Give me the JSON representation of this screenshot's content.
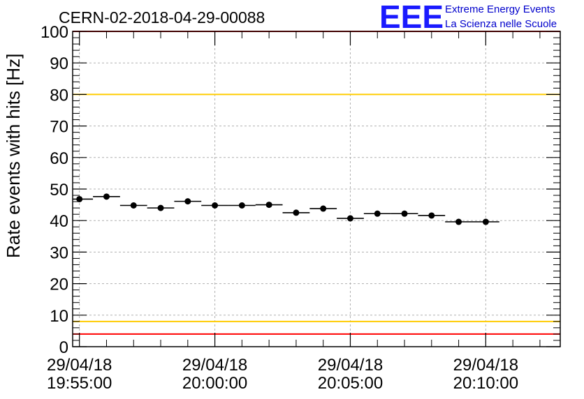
{
  "chart_data": {
    "type": "scatter",
    "title": "CERN-02-2018-04-29-00088",
    "ylabel": "Rate events with hits [Hz]",
    "xlabel": "",
    "ylim": [
      0,
      100
    ],
    "xlim_seconds": [
      -15,
      1065
    ],
    "y_ticks": [
      0,
      10,
      20,
      30,
      40,
      50,
      60,
      70,
      80,
      90,
      100
    ],
    "x_ticks": [
      {
        "t": 0,
        "date": "29/04/18",
        "time": "19:55:00"
      },
      {
        "t": 300,
        "date": "29/04/18",
        "time": "20:00:00"
      },
      {
        "t": 600,
        "date": "29/04/18",
        "time": "20:05:00"
      },
      {
        "t": 900,
        "date": "29/04/18",
        "time": "20:10:00"
      }
    ],
    "bin_width_seconds": 60,
    "series": [
      {
        "name": "rate",
        "x_seconds": [
          0,
          60,
          120,
          180,
          240,
          300,
          360,
          420,
          480,
          540,
          600,
          660,
          720,
          780,
          840,
          900
        ],
        "values": [
          46.8,
          47.6,
          44.8,
          44.0,
          46.1,
          44.8,
          44.8,
          45.0,
          42.5,
          43.8,
          40.7,
          42.2,
          42.2,
          41.6,
          39.6,
          39.6
        ]
      }
    ],
    "reference_lines": [
      {
        "value": 100,
        "color": "#ff0000"
      },
      {
        "value": 80,
        "color": "#ffcc00"
      },
      {
        "value": 8,
        "color": "#ffcc00"
      },
      {
        "value": 4,
        "color": "#ff0000"
      }
    ],
    "grid": true,
    "logo": {
      "mark": "EEE",
      "line1": "Extreme Energy Events",
      "line2": "La Scienza nelle Scuole"
    }
  }
}
